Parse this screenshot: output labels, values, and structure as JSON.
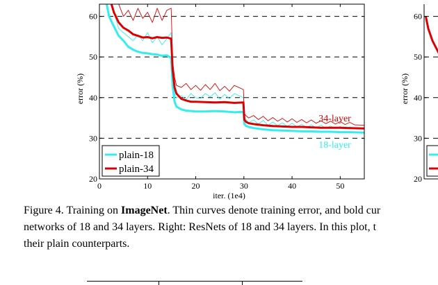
{
  "chart_data": [
    {
      "type": "line",
      "panel": "left",
      "title": "",
      "xlabel": "iter. (1e4)",
      "ylabel": "error (%)",
      "xlim": [
        0,
        55
      ],
      "ylim": [
        20,
        63
      ],
      "xticks": [
        0,
        10,
        20,
        30,
        40,
        50
      ],
      "yticks": [
        20,
        30,
        40,
        50,
        60
      ],
      "grid": "horizontal dashed at 30, 40, 50, 60",
      "legend_position": "bottom-left",
      "annotations": [
        {
          "text": "34-layer",
          "x": 45.5,
          "y": 34.2,
          "color": "#d40000"
        },
        {
          "text": "18-layer",
          "x": 45.5,
          "y": 27.7,
          "color": "#33eeee"
        }
      ],
      "series": [
        {
          "name": "plain-18",
          "style": "bold",
          "color": "#33eeee",
          "kind": "validation",
          "x": [
            1.5,
            2,
            3,
            4,
            5,
            6,
            7,
            8,
            9,
            10,
            11,
            12,
            13,
            14,
            14.9,
            15.2,
            15.6,
            16,
            17,
            18,
            19,
            20,
            22,
            24,
            26,
            28,
            29.9,
            30.1,
            30.5,
            31,
            32,
            34,
            36,
            38,
            40,
            42,
            44,
            46,
            48,
            50,
            52,
            55
          ],
          "values": [
            63,
            60,
            57.5,
            55.2,
            54,
            52.5,
            51.8,
            51.3,
            51,
            50.9,
            50.7,
            50.6,
            50.3,
            50.4,
            49.8,
            43,
            39,
            37.8,
            37.1,
            36.8,
            36.7,
            36.6,
            36.6,
            36.7,
            36.6,
            36.4,
            36.5,
            33.5,
            33,
            32.8,
            32.5,
            32.2,
            32,
            31.9,
            31.8,
            31.7,
            31.7,
            31.6,
            31.6,
            31.5,
            31.5,
            31.4
          ]
        },
        {
          "name": "plain-34",
          "style": "bold",
          "color": "#dd0000",
          "kind": "validation",
          "x": [
            2.5,
            3,
            4,
            5,
            6,
            7,
            8,
            9,
            10,
            11,
            12,
            13,
            14,
            14.9,
            15.2,
            15.6,
            16,
            17,
            18,
            19,
            20,
            22,
            24,
            26,
            28,
            29.9,
            30.1,
            30.5,
            31,
            32,
            34,
            36,
            38,
            40,
            42,
            44,
            46,
            48,
            50,
            52,
            55
          ],
          "values": [
            63,
            61,
            58.5,
            57.2,
            56.5,
            55.6,
            55.2,
            54.8,
            54.9,
            54.6,
            54.9,
            54.7,
            54.8,
            54.5,
            47,
            42.5,
            41,
            39.7,
            39.3,
            39,
            39,
            38.9,
            38.8,
            38.9,
            38.7,
            38.8,
            34.5,
            34,
            33.7,
            33.5,
            33.2,
            33,
            32.9,
            32.8,
            32.8,
            32.7,
            32.6,
            32.6,
            32.6,
            32.5,
            32.4
          ]
        },
        {
          "name": "plain-18 training",
          "style": "thin",
          "color": "#33eeee",
          "kind": "training",
          "x": [
            2.5,
            3,
            4,
            5,
            6,
            7,
            8,
            9,
            10,
            11,
            12,
            13,
            14,
            14.9,
            15.2,
            15.6,
            16,
            17,
            18,
            19,
            20,
            21,
            22,
            23,
            24,
            25,
            26,
            27,
            28,
            29.9,
            30.1,
            30.5,
            31,
            32,
            33,
            34,
            35,
            36,
            37,
            38,
            39,
            40,
            41,
            42,
            43,
            44,
            45,
            46,
            47,
            48,
            49,
            50,
            51,
            52,
            53,
            55
          ],
          "values": [
            63,
            61,
            57,
            56,
            55,
            54,
            55.5,
            54,
            56,
            53.5,
            55,
            53,
            54.5,
            56,
            45,
            41,
            40,
            40.5,
            39.5,
            41,
            40,
            39.8,
            41,
            40.2,
            41.2,
            39.6,
            40.8,
            39.7,
            41,
            40,
            35,
            34.5,
            33.8,
            34.5,
            33.5,
            34.4,
            33.2,
            34,
            33.1,
            33.8,
            32.9,
            33.7,
            32.8,
            33.4,
            32.7,
            33.3,
            32.6,
            33.2,
            32.5,
            33,
            32.4,
            32.9,
            32.3,
            32.8,
            32.4,
            32.5
          ]
        },
        {
          "name": "plain-34 training",
          "style": "thin",
          "color": "#dd0000",
          "kind": "training",
          "x": [
            4,
            5,
            6,
            7,
            8,
            9,
            10,
            11,
            12,
            13,
            14,
            14.9,
            15.2,
            15.6,
            16,
            17,
            18,
            19,
            20,
            21,
            22,
            23,
            24,
            25,
            26,
            27,
            28,
            29.9,
            30.1,
            30.5,
            31,
            32,
            33,
            34,
            35,
            36,
            37,
            38,
            39,
            40,
            41,
            42,
            43,
            44,
            45,
            46,
            47,
            48,
            49,
            50,
            51,
            52,
            53,
            55
          ],
          "values": [
            63,
            60,
            61.5,
            59,
            62,
            59.5,
            61,
            58.5,
            62,
            59,
            61.5,
            62,
            49,
            45,
            43,
            42.5,
            43.5,
            42,
            43,
            41.8,
            43.2,
            42,
            43.5,
            41.7,
            42.8,
            41.6,
            43,
            42,
            36,
            35.5,
            35,
            35.6,
            34.6,
            35.4,
            34.3,
            35.1,
            34.2,
            34.9,
            34,
            34.8,
            33.9,
            34.6,
            33.8,
            34.5,
            33.7,
            34.3,
            33.6,
            34.2,
            33.5,
            34.1,
            33.4,
            33.9,
            33.3,
            33.2
          ]
        }
      ]
    },
    {
      "type": "line",
      "panel": "right (cropped)",
      "title": "",
      "xlabel": "",
      "ylabel": "error (%)",
      "ylim": [
        20,
        63
      ],
      "yticks": [
        20,
        30,
        40,
        50,
        60
      ],
      "series": [
        {
          "name": "",
          "style": "bold",
          "color": "#dd0000",
          "kind": "validation",
          "x": [
            0.2,
            0.5,
            1,
            1.5,
            2
          ],
          "values": [
            60,
            57,
            54,
            52,
            50
          ]
        }
      ]
    }
  ],
  "legend": {
    "items": [
      {
        "label": "plain-18",
        "color": "#33eeee"
      },
      {
        "label": "plain-34",
        "color": "#dd0000"
      }
    ]
  },
  "caption": {
    "line1_prefix": "Figure 4. Training on ",
    "line1_bold": "ImageNet",
    "line1_suffix": ". Thin curves denote training error, and bold cur",
    "line2": "networks of 18 and 34 layers. Right: ResNets of 18 and 34 layers. In this plot, t",
    "line3": "their plain counterparts."
  },
  "table": {
    "header_fragment_1": "",
    "header_fragment_2": ""
  }
}
